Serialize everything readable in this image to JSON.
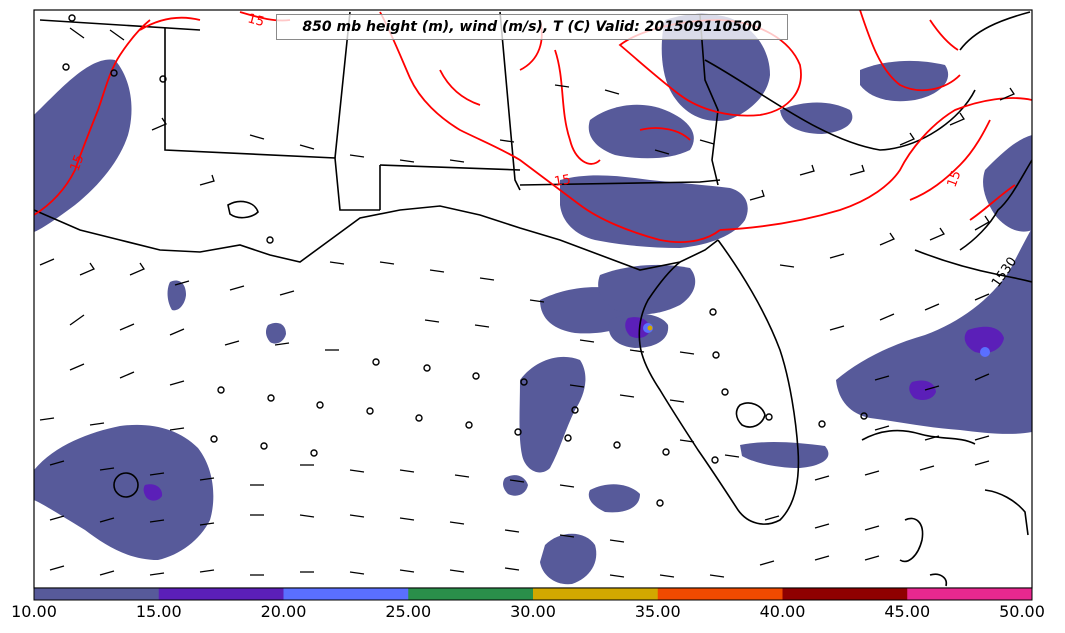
{
  "title": "850 mb height (m), wind (m/s), T (C) Valid: 201509110500",
  "map": {
    "region": "Southeastern United States and Gulf of Mexico",
    "isotherm_color": "#ff0000",
    "boundary_color": "#000000",
    "contour_labels": [
      "15",
      "15",
      "15",
      "15",
      "1530"
    ]
  },
  "colorbar": {
    "ticks": [
      "10.00",
      "15.00",
      "20.00",
      "25.00",
      "30.00",
      "35.00",
      "40.00",
      "45.00",
      "50.00"
    ],
    "colors": [
      "#575a9a",
      "#5b1fb8",
      "#5a6fff",
      "#2a8f4a",
      "#d2a800",
      "#f04a00",
      "#8f0000",
      "#e8288f"
    ]
  }
}
